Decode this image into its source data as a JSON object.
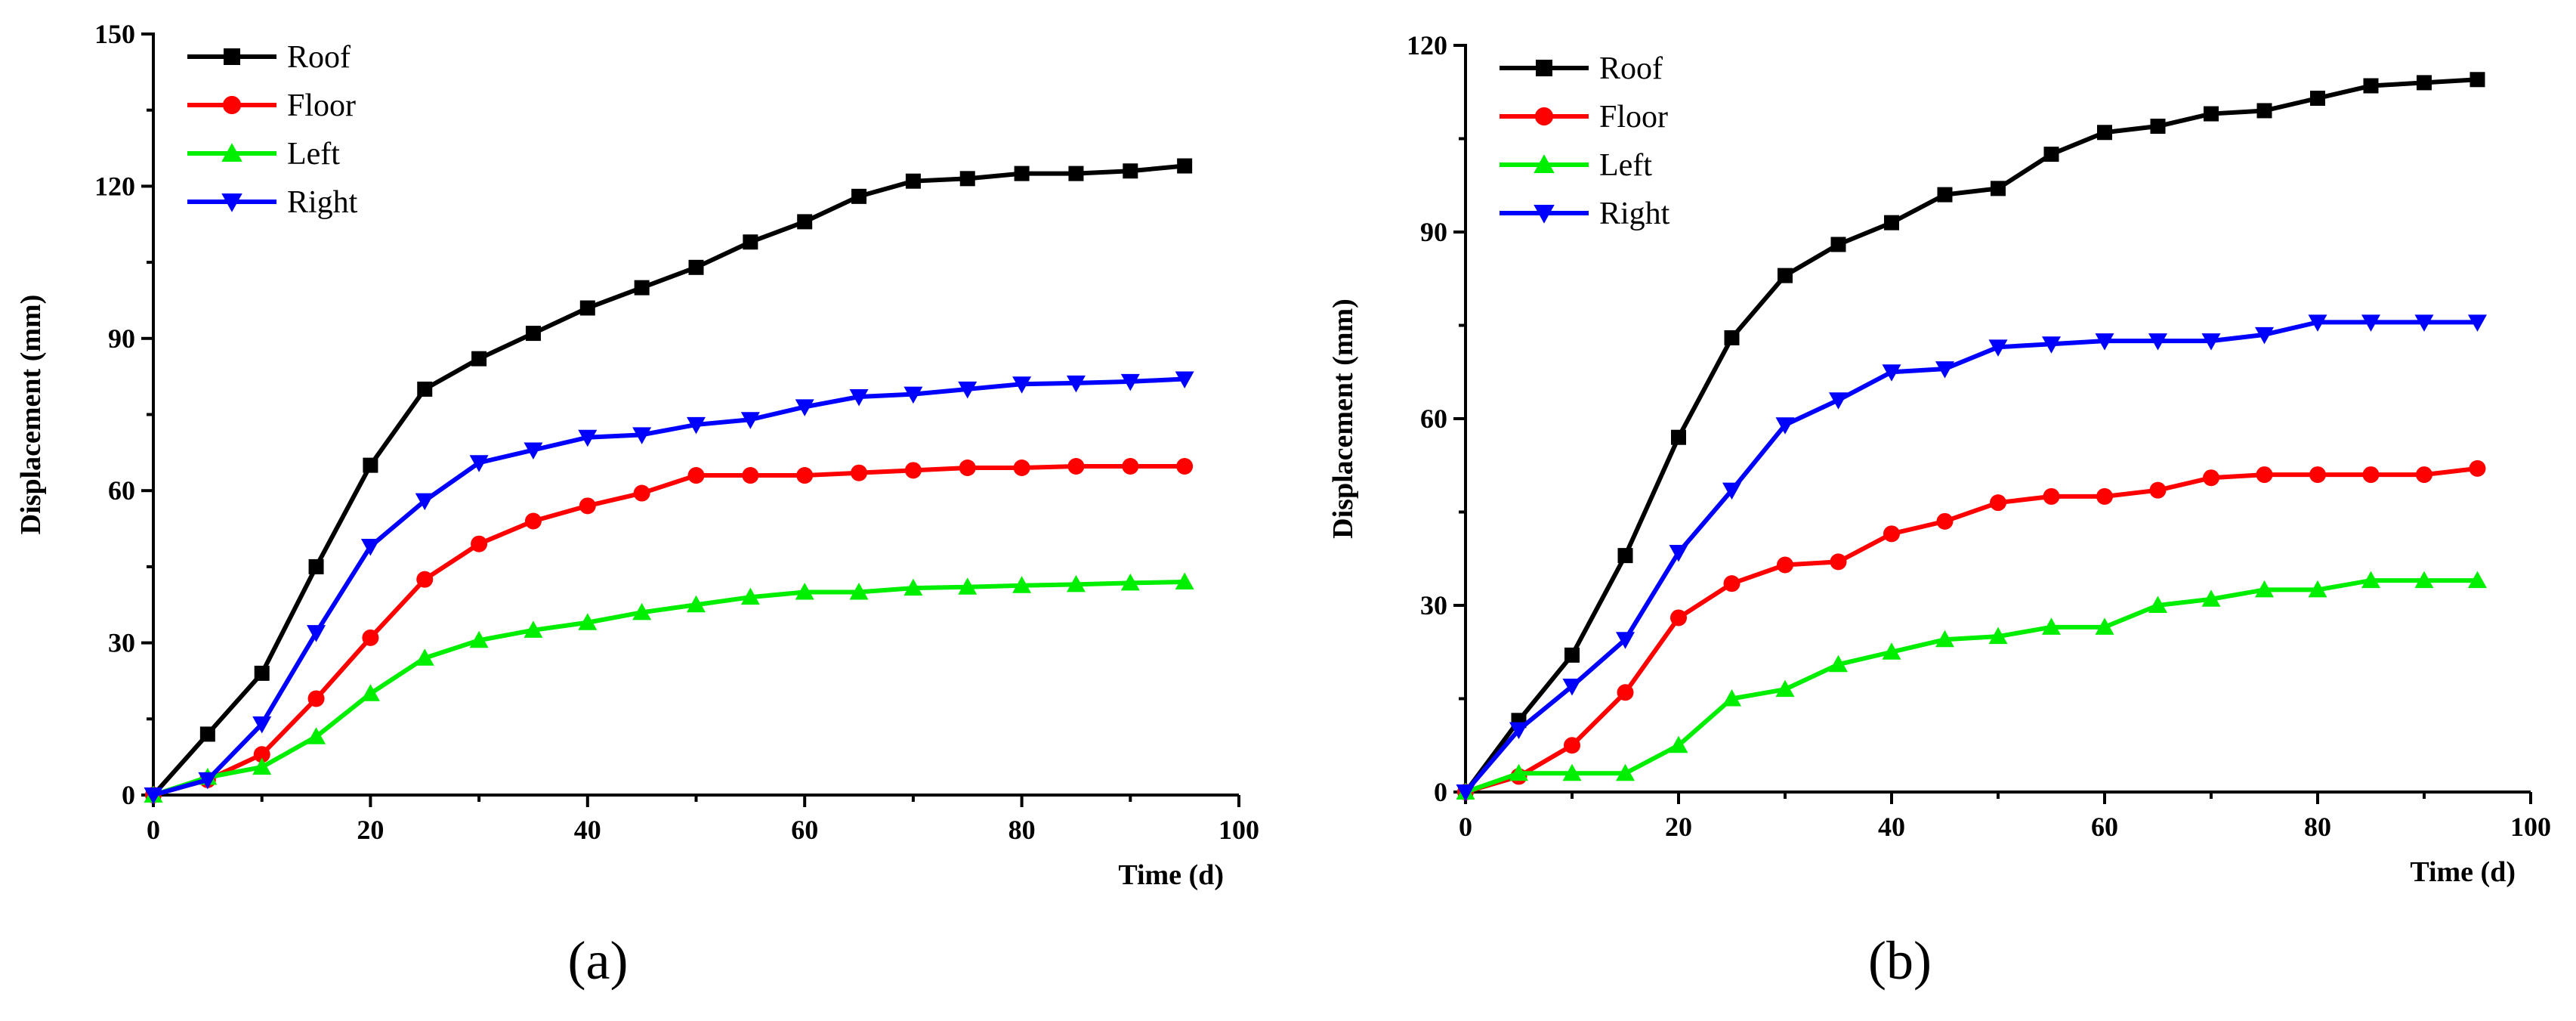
{
  "chart_data": [
    {
      "type": "line",
      "panel_label": "(a)",
      "xlabel": "Time (d)",
      "ylabel": "Displacement (mm)",
      "xlim": [
        0,
        100
      ],
      "ylim": [
        0,
        150
      ],
      "xticks": [
        0,
        20,
        40,
        60,
        80,
        100
      ],
      "yticks": [
        0,
        30,
        60,
        90,
        120,
        150
      ],
      "legend_position": "top-left",
      "x": [
        0,
        5,
        10,
        15,
        20,
        25,
        30,
        35,
        40,
        45,
        50,
        55,
        60,
        65,
        70,
        75,
        80,
        85,
        90,
        95
      ],
      "series": [
        {
          "name": "Roof",
          "color": "#000000",
          "marker": "square",
          "values": [
            0,
            12,
            24,
            45,
            65,
            80,
            86,
            91,
            96,
            100,
            104,
            109,
            113,
            118,
            121,
            121.5,
            122.5,
            122.5,
            123,
            124
          ]
        },
        {
          "name": "Floor",
          "color": "#ff0000",
          "marker": "circle",
          "values": [
            0,
            3,
            8,
            19,
            31,
            42.5,
            49.5,
            54,
            57,
            59.5,
            63,
            63,
            63,
            63.5,
            64,
            64.5,
            64.5,
            64.8,
            64.8,
            64.8
          ]
        },
        {
          "name": "Left",
          "color": "#00ee00",
          "marker": "triangle-up",
          "values": [
            0,
            3.5,
            5.5,
            11.5,
            20,
            27,
            30.5,
            32.5,
            34,
            36,
            37.5,
            39,
            40,
            40,
            40.8,
            41,
            41.3,
            41.5,
            41.8,
            42
          ]
        },
        {
          "name": "Right",
          "color": "#0000ff",
          "marker": "triangle-down",
          "values": [
            0,
            3,
            14,
            32,
            49,
            58,
            65.5,
            68,
            70.5,
            71,
            73,
            74,
            76.5,
            78.5,
            79,
            80,
            81,
            81.2,
            81.5,
            82
          ]
        }
      ]
    },
    {
      "type": "line",
      "panel_label": "(b)",
      "xlabel": "Time (d)",
      "ylabel": "Displacement (mm)",
      "xlim": [
        0,
        100
      ],
      "ylim": [
        0,
        120
      ],
      "xticks": [
        0,
        20,
        40,
        60,
        80,
        100
      ],
      "yticks": [
        0,
        30,
        60,
        90,
        120
      ],
      "legend_position": "top-left",
      "x": [
        0,
        5,
        10,
        15,
        20,
        25,
        30,
        35,
        40,
        45,
        50,
        55,
        60,
        65,
        70,
        75,
        80,
        85,
        90,
        95
      ],
      "series": [
        {
          "name": "Roof",
          "color": "#000000",
          "marker": "square",
          "values": [
            0,
            11.5,
            22,
            38,
            57,
            73,
            83,
            88,
            91.5,
            96,
            97,
            102.5,
            106,
            107,
            109,
            109.5,
            111.5,
            113.5,
            114,
            114.5
          ]
        },
        {
          "name": "Floor",
          "color": "#ff0000",
          "marker": "circle",
          "values": [
            0,
            2.5,
            7.5,
            16,
            28,
            33.5,
            36.5,
            37,
            41.5,
            43.5,
            46.5,
            47.5,
            47.5,
            48.5,
            50.5,
            51,
            51,
            51,
            51,
            52
          ]
        },
        {
          "name": "Left",
          "color": "#00ee00",
          "marker": "triangle-up",
          "values": [
            0,
            3,
            3,
            3,
            7.5,
            15,
            16.5,
            20.5,
            22.5,
            24.5,
            25,
            26.5,
            26.5,
            30,
            31,
            32.5,
            32.5,
            34,
            34,
            34
          ]
        },
        {
          "name": "Right",
          "color": "#0000ff",
          "marker": "triangle-down",
          "values": [
            0,
            10,
            17,
            24.5,
            38.5,
            48.5,
            59,
            63,
            67.5,
            68,
            71.5,
            72,
            72.5,
            72.5,
            72.5,
            73.5,
            75.5,
            75.5,
            75.5,
            75.5
          ]
        }
      ]
    }
  ]
}
